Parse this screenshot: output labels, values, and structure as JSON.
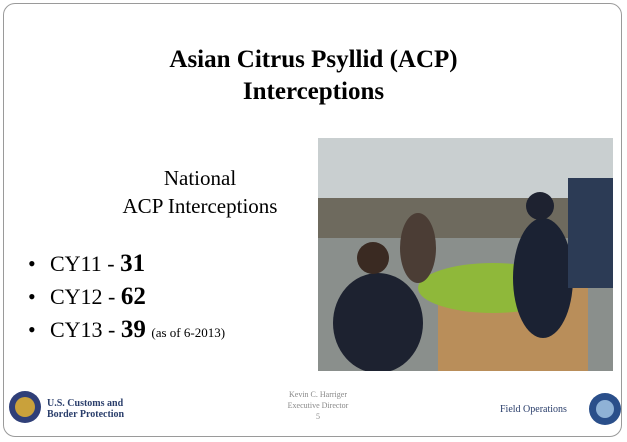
{
  "slide": {
    "title": [
      "Asian Citrus Psyllid (ACP)",
      "Interceptions"
    ],
    "subtitle": [
      "National",
      "ACP Interceptions"
    ],
    "bullets": [
      {
        "label": "CY11 - ",
        "number": "31"
      },
      {
        "label": "CY12 - ",
        "number": "62"
      },
      {
        "label": "CY13 - ",
        "number": "39",
        "note": "(as of 6-2013)"
      }
    ],
    "footer": {
      "agency": [
        "U.S. Customs and",
        "Border Protection"
      ],
      "presenter": [
        "Kevin C. Harriger",
        "Executive Director"
      ],
      "page": "5",
      "office": "Field Operations"
    }
  }
}
